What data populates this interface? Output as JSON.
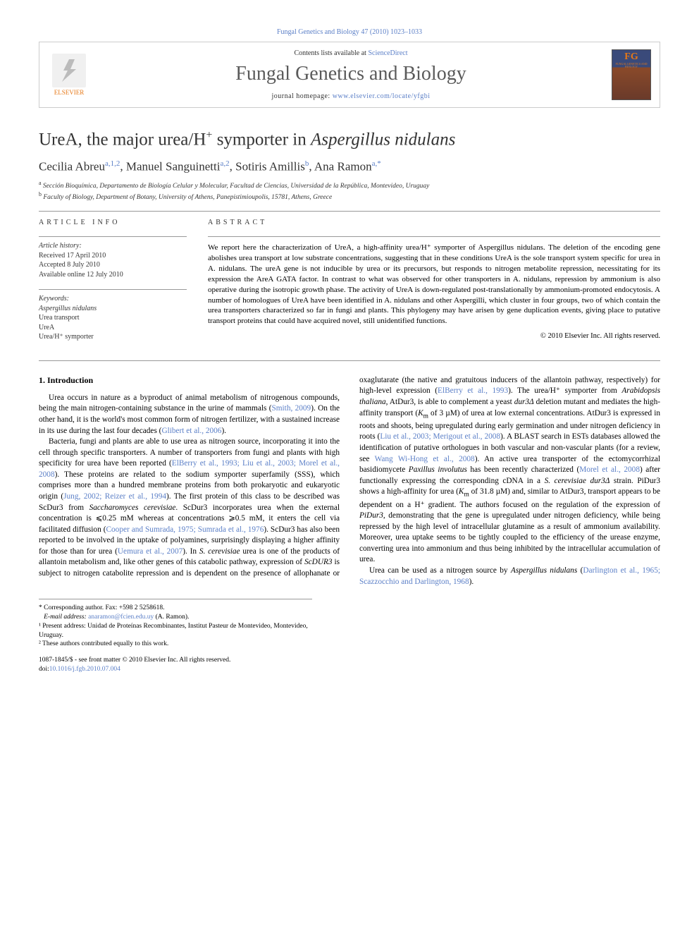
{
  "citation": "Fungal Genetics and Biology 47 (2010) 1023–1033",
  "header": {
    "contents_prefix": "Contents lists available at ",
    "contents_link": "ScienceDirect",
    "journal": "Fungal Genetics and Biology",
    "homepage_prefix": "journal homepage: ",
    "homepage_url": "www.elsevier.com/locate/yfgbi",
    "elsevier_label": "ELSEVIER",
    "cover_fg": "FG",
    "cover_sub": "FUNGALGENETICS AND BIOLOGY"
  },
  "title_parts": {
    "pre": "UreA, the major urea/H",
    "sup": "+",
    "post": " symporter in ",
    "ital": "Aspergillus nidulans"
  },
  "authors": [
    {
      "name": "Cecilia Abreu",
      "sup": "a,1,2"
    },
    {
      "name": "Manuel Sanguinetti",
      "sup": "a,2"
    },
    {
      "name": "Sotiris Amillis",
      "sup": "b"
    },
    {
      "name": "Ana Ramon",
      "sup": "a,*"
    }
  ],
  "affiliations": [
    {
      "sup": "a",
      "text": "Sección Bioquímica, Departamento de Biología Celular y Molecular, Facultad de Ciencias, Universidad de la República, Montevideo, Uruguay"
    },
    {
      "sup": "b",
      "text": "Faculty of Biology, Department of Botany, University of Athens, Panepistimioupolis, 15781, Athens, Greece"
    }
  ],
  "article_info": {
    "label": "ARTICLE INFO",
    "history_label": "Article history:",
    "history": [
      "Received 17 April 2010",
      "Accepted 8 July 2010",
      "Available online 12 July 2010"
    ],
    "keywords_label": "Keywords:",
    "keywords": [
      "Aspergillus nidulans",
      "Urea transport",
      "UreA",
      "Urea/H⁺ symporter"
    ]
  },
  "abstract": {
    "label": "ABSTRACT",
    "text": "We report here the characterization of UreA, a high-affinity urea/H⁺ symporter of Aspergillus nidulans. The deletion of the encoding gene abolishes urea transport at low substrate concentrations, suggesting that in these conditions UreA is the sole transport system specific for urea in A. nidulans. The ureA gene is not inducible by urea or its precursors, but responds to nitrogen metabolite repression, necessitating for its expression the AreA GATA factor. In contrast to what was observed for other transporters in A. nidulans, repression by ammonium is also operative during the isotropic growth phase. The activity of UreA is down-regulated post-translationally by ammonium-promoted endocytosis. A number of homologues of UreA have been identified in A. nidulans and other Aspergilli, which cluster in four groups, two of which contain the urea transporters characterized so far in fungi and plants. This phylogeny may have arisen by gene duplication events, giving place to putative transport proteins that could have acquired novel, still unidentified functions.",
    "copyright": "© 2010 Elsevier Inc. All rights reserved."
  },
  "section_heading": "1. Introduction",
  "paragraphs": {
    "p1_a": "Urea occurs in nature as a byproduct of animal metabolism of nitrogenous compounds, being the main nitrogen-containing substance in the urine of mammals (",
    "p1_l1": "Smith, 2009",
    "p1_b": "). On the other hand, it is the world's most common form of nitrogen fertilizer, with a sustained increase in its use during the last four decades (",
    "p1_l2": "Glibert et al., 2006",
    "p1_c": ").",
    "p2_a": "Bacteria, fungi and plants are able to use urea as nitrogen source, incorporating it into the cell through specific transporters. A number of transporters from fungi and plants with high specificity for urea have been reported (",
    "p2_l1": "ElBerry et al., 1993; Liu et al., 2003; Morel et al., 2008",
    "p2_b": "). These proteins are related to the sodium symporter superfamily (SSS), which comprises more than a hundred membrane proteins from both prokaryotic and eukaryotic origin (",
    "p2_l2": "Jung, 2002; Reizer et al., 1994",
    "p2_c": "). The first protein of this class to be described was ScDur3 from ",
    "p2_i1": "Saccharomyces cerevisiae",
    "p2_d": ". ScDur3 incorporates urea when the external concentration is ⩽0.25 mM whereas at concentrations ⩾0.5 mM, it enters the cell via facilitated diffusion (",
    "p2_l3": "Cooper and Sumrada, 1975; Sumrada et al., 1976",
    "p2_e": "). ScDur3 has also been reported to be involved in the uptake of polyamines, surprisingly displaying a higher affinity for those than for urea (",
    "p2_l4": "Uemura et al., 2007",
    "p2_f": "). In ",
    "p2_i2": "S. cerevisiae",
    "p2_g": " urea is one of the products of allantoin metabolism and, like other genes of this catabolic pathway, expression of ",
    "p2_i3": "ScDUR3",
    "p2_h": " is subject to nitrogen catabolite repression and is dependent on the presence of allophanate or oxaglutarate (the native and gratuitous inducers of the allantoin pathway, respectively) for high-level expression (",
    "p2_l5": "ElBerry et al., 1993",
    "p2_i": "). The urea/H⁺ symporter from ",
    "p2_i4": "Arabidopsis thaliana",
    "p2_j": ", AtDur3, is able to complement a yeast ",
    "p2_i5": "dur3Δ",
    "p2_k": " deletion mutant and mediates the high-affinity transport (",
    "p2_i6": "K",
    "p2_sub": "m",
    "p2_l": " of 3 µM) of urea at low external concentrations. AtDur3 is expressed in roots and shoots, being upregulated during early germination and under nitrogen deficiency in roots (",
    "p2_l6": "Liu et al., 2003; Merigout et al., 2008",
    "p2_m": "). A BLAST search in ESTs databases allowed the identification of putative orthologues in both vascular and non-vascular plants (for a review, see ",
    "p2_l7": "Wang Wi-Hong et al., 2008",
    "p2_n": "). An active urea transporter of the ectomycorrhizal basidiomycete ",
    "p2_i7": "Paxillus involutus",
    "p2_o": " has been recently characterized (",
    "p2_l8": "Morel et al., 2008",
    "p2_p": ") after functionally expressing the corresponding cDNA in a ",
    "p2_i8": "S. cerevisiae dur3Δ",
    "p2_q": " strain. PiDur3 shows a high-affinity for urea (",
    "p2_i9": "K",
    "p2_sub2": "m",
    "p2_r": " of 31.8 µM) and, similar to AtDur3, transport appears to be dependent on a H⁺ gradient. The authors focused on the regulation of the expression of ",
    "p2_i10": "PiDur3",
    "p2_s": ", demonstrating that the gene is upregulated under nitrogen deficiency, while being repressed by the high level of intracellular glutamine as a result of ammonium availability. Moreover, urea uptake seems to be tightly coupled to the efficiency of the urease enzyme, converting urea into ammonium and thus being inhibited by the intracellular accumulation of urea.",
    "p3_a": "Urea can be used as a nitrogen source by ",
    "p3_i1": "Aspergillus nidulans",
    "p3_b": " (",
    "p3_l1": "Darlington et al., 1965; Scazzocchio and Darlington, 1968",
    "p3_c": ")."
  },
  "footnotes": {
    "corr": "* Corresponding author. Fax: +598 2 5258618.",
    "email_label": "E-mail address:",
    "email": "anaramon@fcien.edu.uy",
    "email_paren": " (A. Ramon).",
    "n1": "¹ Present address: Unidad de Proteínas Recombinantes, Institut Pasteur de Montevideo, Montevideo, Uruguay.",
    "n2": "² These authors contributed equally to this work."
  },
  "doi": {
    "line1": "1087-1845/$ - see front matter © 2010 Elsevier Inc. All rights reserved.",
    "line2_prefix": "doi:",
    "line2_link": "10.1016/j.fgb.2010.07.004"
  }
}
